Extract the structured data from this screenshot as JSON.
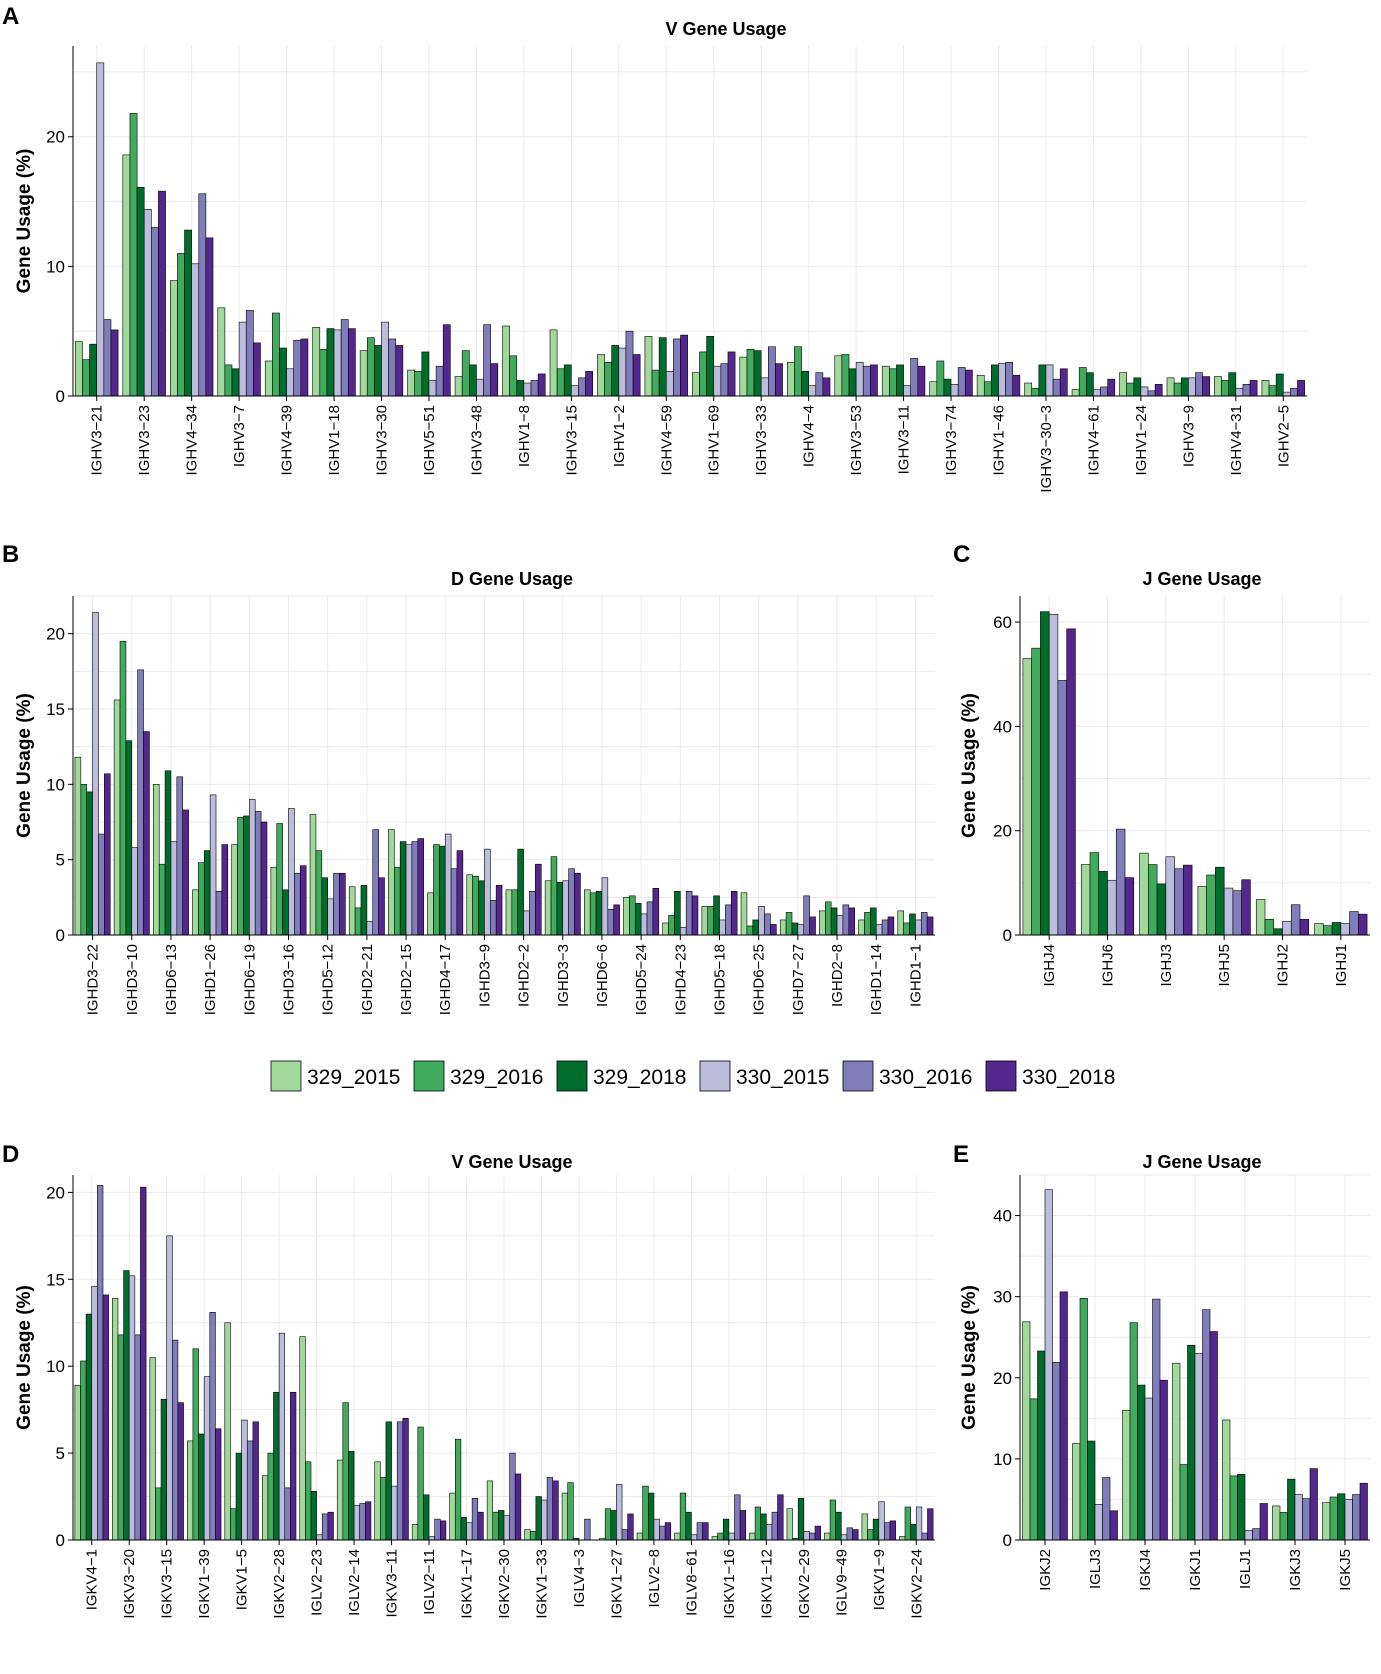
{
  "colors": {
    "329_2015": "#a1d99b",
    "329_2016": "#41ab5d",
    "329_2018": "#006d2c",
    "330_2015": "#bcbddc",
    "330_2016": "#807dba",
    "330_2018": "#54278f"
  },
  "legend": [
    "329_2015",
    "329_2016",
    "329_2018",
    "330_2015",
    "330_2016",
    "330_2018"
  ],
  "chart_data": [
    {
      "id": "A",
      "type": "bar",
      "title": "V Gene Usage",
      "xlabel": "",
      "ylabel": "Gene Usage (%)",
      "ylim": [
        0,
        27
      ],
      "yticks": [
        0,
        10,
        20
      ],
      "categories": [
        "IGHV3−21",
        "IGHV3−23",
        "IGHV4−34",
        "IGHV3−7",
        "IGHV4−39",
        "IGHV1−18",
        "IGHV3−30",
        "IGHV5−51",
        "IGHV3−48",
        "IGHV1−8",
        "IGHV3−15",
        "IGHV1−2",
        "IGHV4−59",
        "IGHV1−69",
        "IGHV3−33",
        "IGHV4−4",
        "IGHV3−53",
        "IGHV3−11",
        "IGHV3−74",
        "IGHV1−46",
        "IGHV3−30−3",
        "IGHV4−61",
        "IGHV1−24",
        "IGHV3−9",
        "IGHV4−31",
        "IGHV2−5"
      ],
      "series": [
        {
          "name": "329_2015",
          "values": [
            4.2,
            18.6,
            8.9,
            6.8,
            2.7,
            5.3,
            3.5,
            2.0,
            1.5,
            5.4,
            5.1,
            3.2,
            4.6,
            1.8,
            3.0,
            2.6,
            3.1,
            2.3,
            1.1,
            1.6,
            1.0,
            0.5,
            1.8,
            1.4,
            1.5,
            1.2
          ]
        },
        {
          "name": "329_2016",
          "values": [
            2.8,
            21.8,
            11.0,
            2.4,
            6.4,
            3.6,
            4.5,
            1.9,
            3.5,
            3.1,
            2.1,
            2.6,
            2.0,
            3.4,
            3.6,
            3.8,
            3.2,
            2.1,
            2.7,
            1.1,
            0.6,
            2.2,
            1.0,
            1.0,
            1.2,
            0.8
          ]
        },
        {
          "name": "329_2018",
          "values": [
            4.0,
            16.1,
            12.8,
            2.1,
            3.7,
            5.2,
            3.9,
            3.4,
            2.4,
            1.2,
            2.4,
            3.9,
            4.5,
            4.6,
            3.5,
            1.9,
            2.1,
            2.4,
            1.3,
            2.4,
            2.4,
            1.8,
            1.4,
            1.4,
            1.8,
            1.7
          ]
        },
        {
          "name": "330_2015",
          "values": [
            25.7,
            14.4,
            10.2,
            5.7,
            2.1,
            5.1,
            5.7,
            1.2,
            1.3,
            1.0,
            0.8,
            3.7,
            1.9,
            2.3,
            1.4,
            0.8,
            2.6,
            0.8,
            0.9,
            2.5,
            2.4,
            0.5,
            0.7,
            1.4,
            0.6,
            0.3
          ]
        },
        {
          "name": "330_2016",
          "values": [
            5.9,
            13.0,
            15.6,
            6.6,
            4.3,
            5.9,
            4.4,
            2.3,
            5.5,
            1.2,
            1.4,
            5.0,
            4.4,
            2.5,
            3.8,
            1.8,
            2.3,
            2.9,
            2.2,
            2.6,
            1.3,
            0.7,
            0.4,
            1.8,
            0.9,
            0.6
          ]
        },
        {
          "name": "330_2018",
          "values": [
            5.1,
            15.8,
            12.2,
            4.1,
            4.4,
            5.2,
            3.9,
            5.5,
            2.5,
            1.7,
            1.9,
            3.2,
            4.7,
            3.4,
            2.5,
            1.4,
            2.4,
            2.3,
            2.0,
            1.6,
            2.1,
            1.3,
            0.9,
            1.5,
            1.2,
            1.2
          ]
        }
      ]
    },
    {
      "id": "B",
      "type": "bar",
      "title": "D Gene Usage",
      "xlabel": "",
      "ylabel": "Gene Usage (%)",
      "ylim": [
        0,
        22.5
      ],
      "yticks": [
        0,
        5,
        10,
        15,
        20
      ],
      "categories": [
        "IGHD3−22",
        "IGHD3−10",
        "IGHD6−13",
        "IGHD1−26",
        "IGHD6−19",
        "IGHD3−16",
        "IGHD5−12",
        "IGHD2−21",
        "IGHD2−15",
        "IGHD4−17",
        "IGHD3−9",
        "IGHD2−2",
        "IGHD3−3",
        "IGHD6−6",
        "IGHD5−24",
        "IGHD4−23",
        "IGHD5−18",
        "IGHD6−25",
        "IGHD7−27",
        "IGHD2−8",
        "IGHD1−14",
        "IGHD1−1"
      ],
      "series": [
        {
          "name": "329_2015",
          "values": [
            11.8,
            15.6,
            10.0,
            3.0,
            6.0,
            4.5,
            8.0,
            3.2,
            7.0,
            2.8,
            4.0,
            3.0,
            3.6,
            3.0,
            2.5,
            0.8,
            1.9,
            2.8,
            1.0,
            1.6,
            1.0,
            1.6
          ]
        },
        {
          "name": "329_2016",
          "values": [
            10.0,
            19.5,
            4.7,
            4.8,
            7.8,
            7.4,
            5.6,
            1.8,
            4.5,
            6.0,
            3.9,
            3.0,
            5.2,
            2.8,
            2.6,
            1.3,
            1.9,
            0.6,
            1.5,
            2.2,
            1.5,
            0.8
          ]
        },
        {
          "name": "329_2018",
          "values": [
            9.5,
            12.9,
            10.9,
            5.6,
            7.9,
            3.0,
            3.8,
            3.3,
            6.2,
            5.9,
            3.6,
            5.7,
            3.5,
            2.9,
            2.1,
            2.9,
            2.6,
            1.0,
            0.8,
            1.8,
            1.8,
            1.4
          ]
        },
        {
          "name": "330_2015",
          "values": [
            21.4,
            5.8,
            6.2,
            9.3,
            9.0,
            8.4,
            2.4,
            0.9,
            6.0,
            6.7,
            5.7,
            1.6,
            3.6,
            3.8,
            1.4,
            0.5,
            1.0,
            1.9,
            0.7,
            1.3,
            0.7,
            1.0
          ]
        },
        {
          "name": "330_2016",
          "values": [
            6.7,
            17.6,
            10.5,
            2.9,
            8.2,
            4.1,
            4.1,
            7.0,
            6.2,
            4.4,
            2.3,
            2.9,
            4.4,
            1.7,
            2.2,
            2.9,
            2.0,
            1.4,
            2.6,
            2.0,
            1.0,
            1.5
          ]
        },
        {
          "name": "330_2018",
          "values": [
            10.7,
            13.5,
            8.3,
            6.0,
            7.5,
            4.6,
            4.1,
            3.8,
            6.4,
            5.6,
            3.3,
            4.7,
            4.1,
            2.0,
            3.1,
            2.6,
            2.9,
            0.7,
            1.2,
            1.8,
            1.2,
            1.2
          ]
        }
      ]
    },
    {
      "id": "C",
      "type": "bar",
      "title": "J Gene Usage",
      "xlabel": "",
      "ylabel": "Gene Usage (%)",
      "ylim": [
        0,
        65
      ],
      "yticks": [
        0,
        20,
        40,
        60
      ],
      "categories": [
        "IGHJ4",
        "IGHJ6",
        "IGHJ3",
        "IGHJ5",
        "IGHJ2",
        "IGHJ1"
      ],
      "series": [
        {
          "name": "329_2015",
          "values": [
            53.0,
            13.5,
            15.7,
            9.3,
            6.8,
            2.2
          ]
        },
        {
          "name": "329_2016",
          "values": [
            55.0,
            15.8,
            13.5,
            11.5,
            3.0,
            1.8
          ]
        },
        {
          "name": "329_2018",
          "values": [
            62.0,
            12.2,
            9.8,
            13.0,
            1.2,
            2.4
          ]
        },
        {
          "name": "330_2015",
          "values": [
            61.5,
            10.5,
            15.0,
            9.0,
            2.6,
            2.2
          ]
        },
        {
          "name": "330_2016",
          "values": [
            48.8,
            20.3,
            12.7,
            8.5,
            5.8,
            4.5
          ]
        },
        {
          "name": "330_2018",
          "values": [
            58.7,
            11.0,
            13.4,
            10.6,
            3.0,
            4.0
          ]
        }
      ]
    },
    {
      "id": "D",
      "type": "bar",
      "title": "V Gene Usage",
      "xlabel": "",
      "ylabel": "Gene Usage (%)",
      "ylim": [
        0,
        21
      ],
      "yticks": [
        0,
        5,
        10,
        15,
        20
      ],
      "categories": [
        "IGKV4−1",
        "IGKV3−20",
        "IGKV3−15",
        "IGKV1−39",
        "IGKV1−5",
        "IGKV2−28",
        "IGLV2−23",
        "IGLV2−14",
        "IGKV3−11",
        "IGLV2−11",
        "IGKV1−17",
        "IGKV2−30",
        "IGKV1−33",
        "IGLV4−3",
        "IGKV1−27",
        "IGLV2−8",
        "IGLV8−61",
        "IGKV1−16",
        "IGKV1−12",
        "IGKV2−29",
        "IGLV9−49",
        "IGKV1−9",
        "IGKV2−24"
      ],
      "series": [
        {
          "name": "329_2015",
          "values": [
            8.9,
            13.9,
            10.5,
            5.7,
            12.5,
            3.7,
            11.7,
            4.6,
            4.5,
            0.9,
            2.7,
            3.4,
            0.6,
            2.7,
            0.1,
            0.4,
            0.4,
            0.2,
            0.4,
            1.8,
            0.4,
            1.5,
            0.2
          ]
        },
        {
          "name": "329_2016",
          "values": [
            10.3,
            11.8,
            3.0,
            11.0,
            1.8,
            5.0,
            4.5,
            7.9,
            3.6,
            6.5,
            5.8,
            1.6,
            0.5,
            3.3,
            1.8,
            3.1,
            2.7,
            0.4,
            1.9,
            0.1,
            2.3,
            0.6,
            1.9
          ]
        },
        {
          "name": "329_2018",
          "values": [
            13.0,
            15.5,
            8.1,
            6.1,
            5.0,
            8.5,
            2.8,
            5.1,
            6.8,
            2.6,
            1.3,
            1.7,
            2.5,
            0.1,
            1.7,
            2.7,
            1.6,
            1.2,
            1.5,
            2.4,
            1.6,
            1.2,
            0.9
          ]
        },
        {
          "name": "330_2015",
          "values": [
            14.6,
            15.2,
            17.5,
            9.4,
            6.9,
            11.9,
            0.3,
            2.0,
            3.1,
            0.2,
            1.0,
            1.4,
            2.3,
            0.0,
            3.2,
            1.2,
            0.3,
            0.4,
            0.9,
            0.5,
            0.3,
            2.2,
            1.9
          ]
        },
        {
          "name": "330_2016",
          "values": [
            20.4,
            11.8,
            11.5,
            13.1,
            5.7,
            3.0,
            1.5,
            2.1,
            6.8,
            1.2,
            2.4,
            5.0,
            3.6,
            1.2,
            0.6,
            0.8,
            1.0,
            2.6,
            1.6,
            0.4,
            0.7,
            1.0,
            0.4
          ]
        },
        {
          "name": "330_2018",
          "values": [
            14.1,
            20.3,
            7.9,
            6.4,
            6.8,
            8.5,
            1.6,
            2.2,
            7.0,
            1.1,
            1.6,
            3.8,
            3.4,
            0.0,
            1.5,
            1.0,
            1.0,
            1.7,
            2.6,
            0.8,
            0.6,
            1.1,
            1.8
          ]
        }
      ]
    },
    {
      "id": "E",
      "type": "bar",
      "title": "J Gene Usage",
      "xlabel": "",
      "ylabel": "Gene Usage (%)",
      "ylim": [
        0,
        45
      ],
      "yticks": [
        0,
        10,
        20,
        30,
        40
      ],
      "categories": [
        "IGKJ2",
        "IGLJ3",
        "IGKJ4",
        "IGKJ1",
        "IGLJ1",
        "IGKJ3",
        "IGKJ5"
      ],
      "series": [
        {
          "name": "329_2015",
          "values": [
            26.9,
            11.9,
            16.0,
            21.8,
            14.8,
            4.2,
            4.6
          ]
        },
        {
          "name": "329_2016",
          "values": [
            17.4,
            29.8,
            26.8,
            9.3,
            7.9,
            3.4,
            5.3
          ]
        },
        {
          "name": "329_2018",
          "values": [
            23.3,
            12.2,
            19.1,
            24.0,
            8.1,
            7.5,
            5.7
          ]
        },
        {
          "name": "330_2015",
          "values": [
            43.2,
            4.4,
            17.5,
            23.0,
            1.2,
            5.6,
            5.0
          ]
        },
        {
          "name": "330_2016",
          "values": [
            21.9,
            7.7,
            29.7,
            28.4,
            1.4,
            5.1,
            5.6
          ]
        },
        {
          "name": "330_2018",
          "values": [
            30.6,
            3.6,
            19.7,
            25.7,
            4.5,
            8.8,
            7.0
          ]
        }
      ]
    }
  ]
}
